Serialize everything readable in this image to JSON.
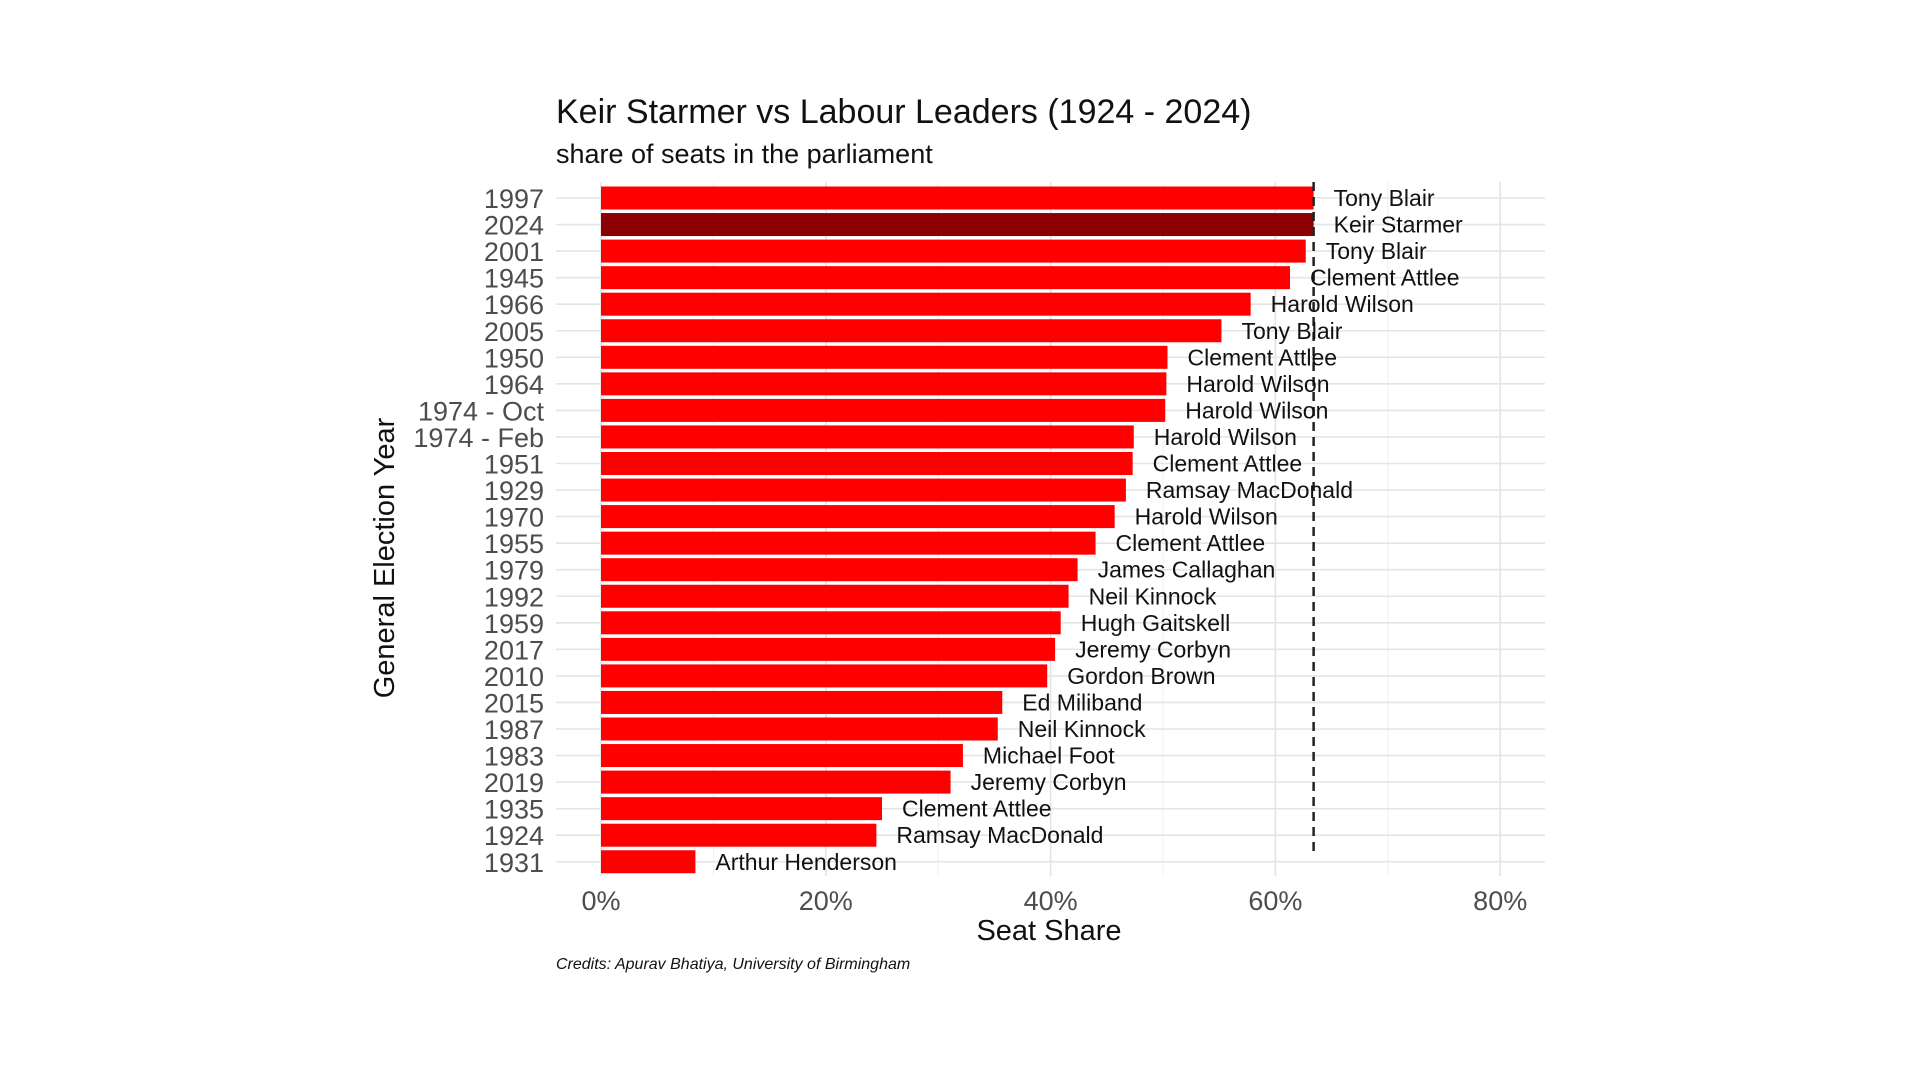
{
  "chart_data": {
    "type": "bar",
    "orientation": "horizontal",
    "title": "Keir Starmer vs Labour Leaders (1924 - 2024)",
    "subtitle": "share of seats in the parliament",
    "xlabel": "Seat Share",
    "ylabel": "General Election Year",
    "caption": "Credits: Apurav Bhatiya, University of Birmingham",
    "xlim": [
      0,
      0.84
    ],
    "x_ticks": [
      0,
      0.2,
      0.4,
      0.6,
      0.8
    ],
    "x_tick_labels": [
      "0%",
      "20%",
      "40%",
      "60%",
      "80%"
    ],
    "grid": true,
    "reference_line": {
      "value": 0.634,
      "style": "dashed"
    },
    "colors": {
      "default_bar": "#ff0000",
      "highlight_bar": "#8b0000",
      "reference_line": "#222222"
    },
    "categories": [
      "1997",
      "2024",
      "2001",
      "1945",
      "1966",
      "2005",
      "1950",
      "1964",
      "1974 - Oct",
      "1974 - Feb",
      "1951",
      "1929",
      "1970",
      "1955",
      "1979",
      "1992",
      "1959",
      "2017",
      "2010",
      "2015",
      "1987",
      "1983",
      "2019",
      "1935",
      "1924",
      "1931"
    ],
    "values": [
      0.634,
      0.634,
      0.627,
      0.613,
      0.578,
      0.552,
      0.504,
      0.503,
      0.502,
      0.474,
      0.473,
      0.467,
      0.457,
      0.44,
      0.424,
      0.416,
      0.409,
      0.404,
      0.397,
      0.357,
      0.353,
      0.322,
      0.311,
      0.25,
      0.245,
      0.084
    ],
    "labels": [
      "Tony Blair",
      "Keir Starmer",
      "Tony Blair",
      "Clement Attlee",
      "Harold Wilson",
      "Tony Blair",
      "Clement Attlee",
      "Harold Wilson",
      "Harold Wilson",
      "Harold Wilson",
      "Clement Attlee",
      "Ramsay MacDonald",
      "Harold Wilson",
      "Clement Attlee",
      "James Callaghan",
      "Neil Kinnock",
      "Hugh Gaitskell",
      "Jeremy Corbyn",
      "Gordon Brown",
      "Ed Miliband",
      "Neil Kinnock",
      "Michael Foot",
      "Jeremy Corbyn",
      "Clement Attlee",
      "Ramsay MacDonald",
      "Arthur Henderson"
    ],
    "highlight": "2024"
  }
}
